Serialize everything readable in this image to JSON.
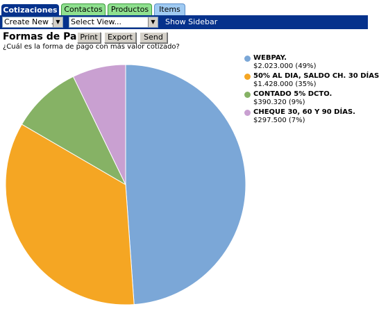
{
  "tabs": [
    {
      "label": "Cotizaciones"
    },
    {
      "label": "Contactos"
    },
    {
      "label": "Productos"
    },
    {
      "label": "Items"
    }
  ],
  "toolbar": {
    "create_new": "Create New ...",
    "select_view": "Select View...",
    "show_sidebar": "Show Sidebar"
  },
  "page": {
    "title": "Formas de Pago",
    "subtitle": "¿Cuál es la forma de pago con más valor cotizado?",
    "buttons": {
      "print": "Print",
      "export": "Export",
      "send": "Send"
    }
  },
  "colors": {
    "accent": "#06328c",
    "tab_green": "#8fe08f",
    "tab_blue": "#9fcaf2"
  },
  "chart_data": {
    "type": "pie",
    "title": "",
    "legend_position": "top-right",
    "series": [
      {
        "name": "WEBPAY.",
        "value": 2023000,
        "value_text": "$2.023.000 (49%)",
        "percent": 49,
        "color": "#7ba7d7"
      },
      {
        "name": "50% AL DIA, SALDO CH. 30 DÍAS",
        "value": 1428000,
        "value_text": "$1.428.000 (35%)",
        "percent": 35,
        "color": "#f5a623"
      },
      {
        "name": "CONTADO 5% DCTO.",
        "value": 390320,
        "value_text": "$390.320 (9%)",
        "percent": 9,
        "color": "#86b265"
      },
      {
        "name": "CHEQUE 30, 60 Y 90 DÍAS.",
        "value": 297500,
        "value_text": "$297.500 (7%)",
        "percent": 7,
        "color": "#c9a0d1"
      }
    ]
  }
}
